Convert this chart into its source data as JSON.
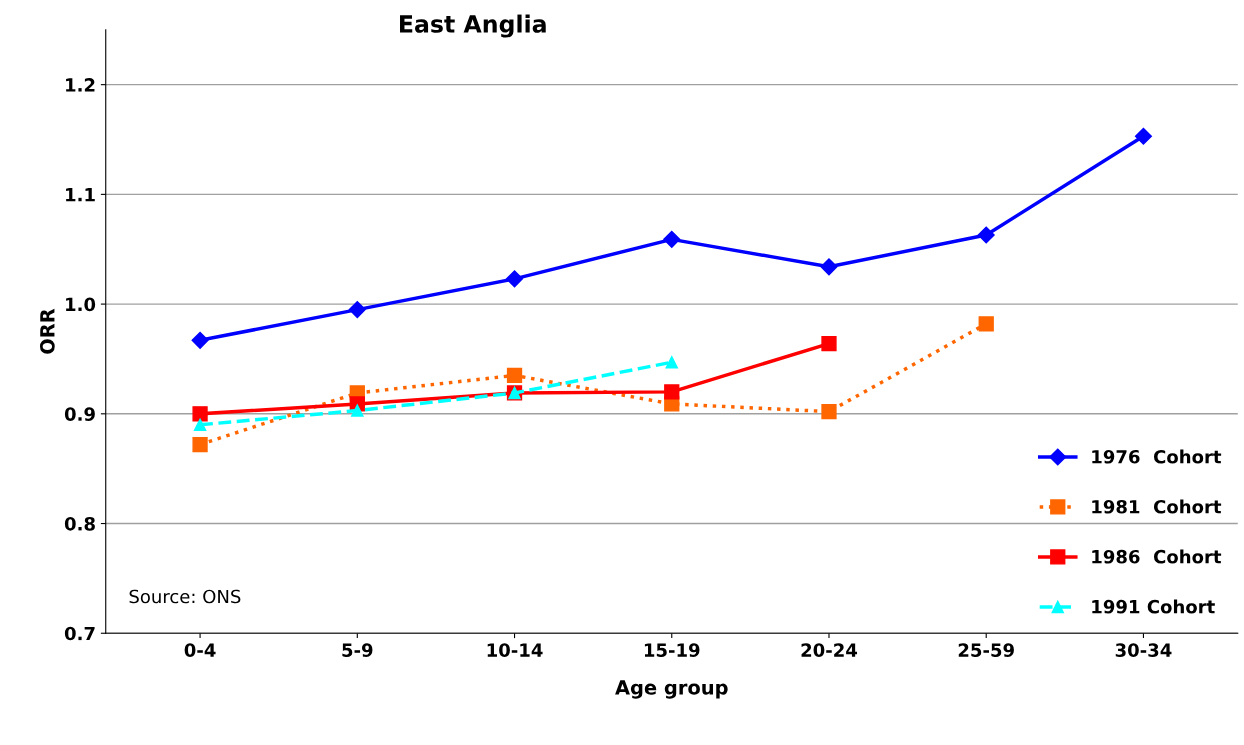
{
  "chart_data": {
    "type": "line",
    "title": "East Anglia",
    "xlabel": "Age group",
    "ylabel": "ORR",
    "categories": [
      "0-4",
      "5-9",
      "10-14",
      "15-19",
      "20-24",
      "25-59",
      "30-34"
    ],
    "series": [
      {
        "name": "1976  Cohort",
        "color": "#0000ff",
        "marker": "diamond",
        "line_style": "solid",
        "values": [
          0.967,
          0.995,
          1.023,
          1.059,
          1.034,
          1.063,
          1.153
        ]
      },
      {
        "name": "1981  Cohort",
        "color": "#ff6600",
        "marker": "square",
        "line_style": "dotted",
        "values": [
          0.872,
          0.919,
          0.935,
          0.909,
          0.902,
          0.982,
          null
        ]
      },
      {
        "name": "1986  Cohort",
        "color": "#ff0000",
        "marker": "square",
        "line_style": "solid",
        "values": [
          0.9,
          0.909,
          0.919,
          0.92,
          0.964,
          null,
          null
        ]
      },
      {
        "name": "1991 Cohort",
        "color": "#00ffff",
        "marker": "triangle",
        "line_style": "dashed",
        "values": [
          0.89,
          0.903,
          0.919,
          0.947,
          null,
          null,
          null
        ]
      }
    ],
    "ylim": [
      0.7,
      1.25
    ],
    "yticks": [
      0.7,
      0.8,
      0.9,
      {
        "value": 1,
        "label": "1.0"
      },
      1.1,
      1.2
    ],
    "grid": "y",
    "legend": "bottom right",
    "annotations": [
      "Source: ONS"
    ]
  }
}
